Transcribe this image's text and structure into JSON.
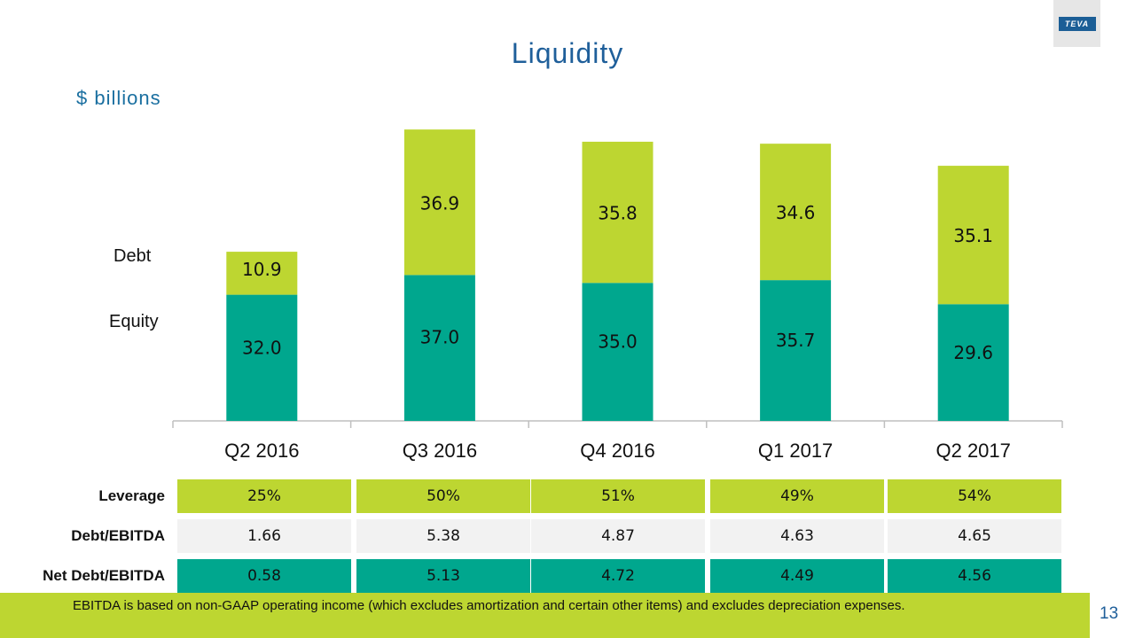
{
  "slide": {
    "title": "Liquidity",
    "units": "$ billions",
    "page_number": "13",
    "logo_text": "TEVA",
    "footnote": "EBITDA is based on non-GAAP operating income (which excludes amortization and certain other items) and excludes depreciation expenses."
  },
  "labels": {
    "debt": "Debt",
    "equity": "Equity"
  },
  "colors": {
    "debt": "#bdd631",
    "equity": "#00a78e",
    "title": "#1f5f9a"
  },
  "chart_data": {
    "type": "bar",
    "stacked": true,
    "title": "Liquidity",
    "ylabel": "$ billions",
    "categories": [
      "Q2 2016",
      "Q3 2016",
      "Q4 2016",
      "Q1 2017",
      "Q2 2017"
    ],
    "series": [
      {
        "name": "Equity",
        "values": [
          32.0,
          37.0,
          35.0,
          35.7,
          29.6
        ]
      },
      {
        "name": "Debt",
        "values": [
          10.9,
          36.9,
          35.8,
          34.6,
          35.1
        ]
      }
    ],
    "ylim": [
      0,
      80
    ],
    "grid": false,
    "legend": "left"
  },
  "metrics": {
    "rows": [
      {
        "label": "Leverage",
        "values": [
          "25%",
          "50%",
          "51%",
          "49%",
          "54%"
        ]
      },
      {
        "label": "Debt/EBITDA",
        "values": [
          "1.66",
          "5.38",
          "4.87",
          "4.63",
          "4.65"
        ]
      },
      {
        "label": "Net Debt/EBITDA",
        "values": [
          "0.58",
          "5.13",
          "4.72",
          "4.49",
          "4.56"
        ]
      }
    ]
  }
}
